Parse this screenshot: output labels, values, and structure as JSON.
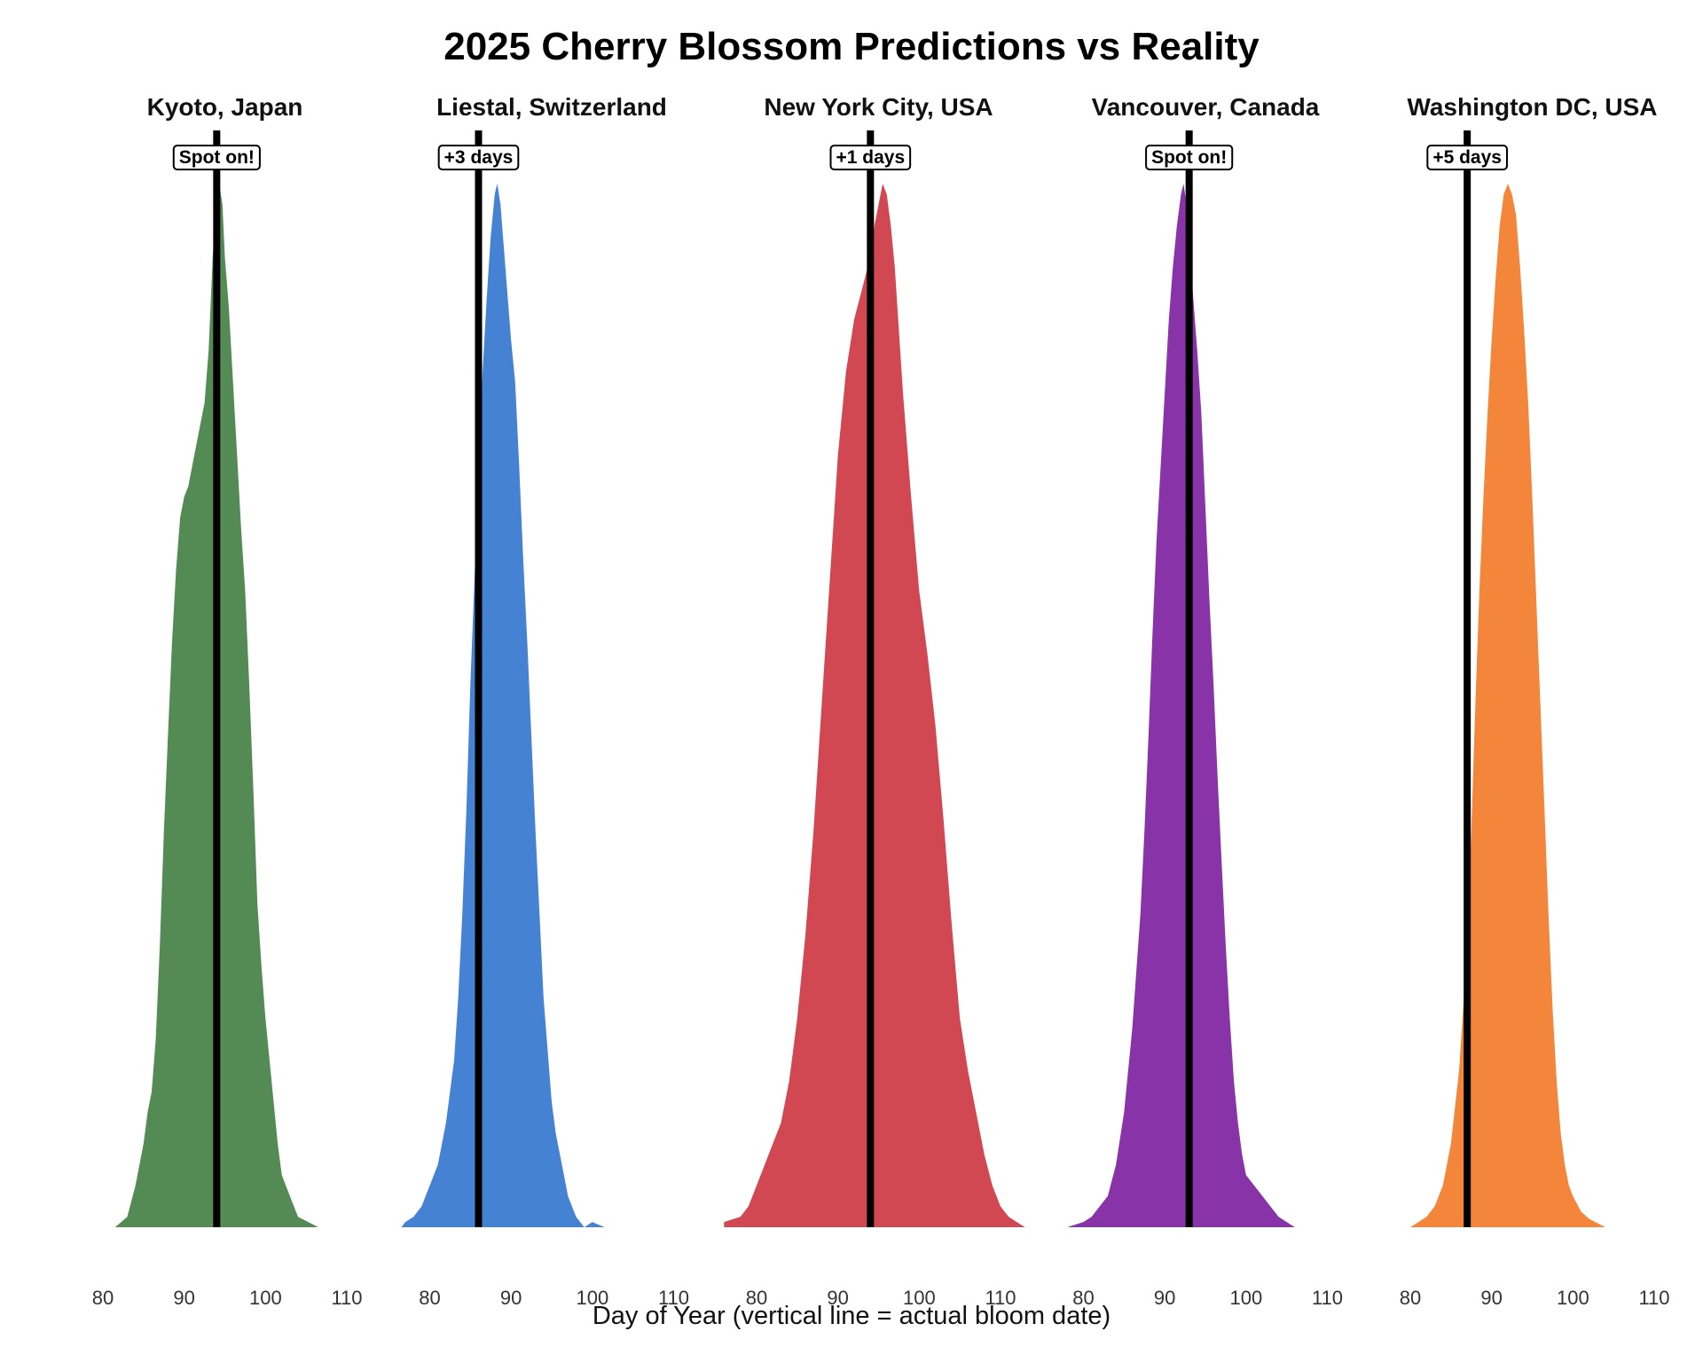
{
  "chart_data": {
    "type": "density",
    "title": "2025 Cherry Blossom Predictions vs Reality",
    "xlabel": "Day of Year (vertical line = actual bloom date)",
    "ylabel": "",
    "xlim": [
      80,
      110
    ],
    "xticks": [
      80,
      90,
      100,
      110
    ],
    "grid": false,
    "legend": "none",
    "panels": [
      {
        "name": "Kyoto, Japan",
        "color": "#548B54",
        "actual_bloom_day": 94,
        "annotation": "Spot on!",
        "density": [
          [
            81.5,
            0.0
          ],
          [
            83,
            0.01
          ],
          [
            84,
            0.04
          ],
          [
            85,
            0.08
          ],
          [
            85.5,
            0.11
          ],
          [
            86,
            0.13
          ],
          [
            86.5,
            0.18
          ],
          [
            87,
            0.27
          ],
          [
            87.5,
            0.38
          ],
          [
            88,
            0.47
          ],
          [
            88.5,
            0.56
          ],
          [
            89,
            0.63
          ],
          [
            89.5,
            0.68
          ],
          [
            90,
            0.7
          ],
          [
            90.5,
            0.71
          ],
          [
            91,
            0.73
          ],
          [
            91.5,
            0.75
          ],
          [
            92,
            0.77
          ],
          [
            92.5,
            0.79
          ],
          [
            93,
            0.84
          ],
          [
            93.5,
            0.93
          ],
          [
            94,
            0.98
          ],
          [
            94.3,
            1.0
          ],
          [
            94.7,
            0.98
          ],
          [
            95,
            0.93
          ],
          [
            95.5,
            0.88
          ],
          [
            96,
            0.81
          ],
          [
            96.5,
            0.74
          ],
          [
            97,
            0.67
          ],
          [
            97.5,
            0.61
          ],
          [
            98,
            0.52
          ],
          [
            98.5,
            0.42
          ],
          [
            99,
            0.31
          ],
          [
            99.5,
            0.25
          ],
          [
            100,
            0.2
          ],
          [
            100.5,
            0.16
          ],
          [
            101,
            0.12
          ],
          [
            101.5,
            0.08
          ],
          [
            102,
            0.05
          ],
          [
            103,
            0.03
          ],
          [
            104,
            0.01
          ],
          [
            106.5,
            0.0
          ]
        ]
      },
      {
        "name": "Liestal, Switzerland",
        "color": "#4682D4",
        "actual_bloom_day": 86,
        "annotation": "+3 days",
        "density": [
          [
            76.5,
            0.0
          ],
          [
            77,
            0.005
          ],
          [
            78,
            0.01
          ],
          [
            79,
            0.02
          ],
          [
            80,
            0.04
          ],
          [
            81,
            0.06
          ],
          [
            82,
            0.1
          ],
          [
            83,
            0.16
          ],
          [
            83.5,
            0.22
          ],
          [
            84,
            0.3
          ],
          [
            84.5,
            0.4
          ],
          [
            85,
            0.52
          ],
          [
            85.5,
            0.62
          ],
          [
            86,
            0.73
          ],
          [
            86.5,
            0.82
          ],
          [
            87,
            0.89
          ],
          [
            87.5,
            0.95
          ],
          [
            88,
            0.99
          ],
          [
            88.3,
            1.0
          ],
          [
            88.7,
            0.98
          ],
          [
            89,
            0.95
          ],
          [
            89.5,
            0.9
          ],
          [
            90,
            0.85
          ],
          [
            90.5,
            0.81
          ],
          [
            91,
            0.73
          ],
          [
            91.5,
            0.64
          ],
          [
            92,
            0.56
          ],
          [
            92.5,
            0.47
          ],
          [
            93,
            0.38
          ],
          [
            93.5,
            0.3
          ],
          [
            94,
            0.22
          ],
          [
            94.5,
            0.17
          ],
          [
            95,
            0.12
          ],
          [
            95.5,
            0.09
          ],
          [
            96,
            0.07
          ],
          [
            96.5,
            0.05
          ],
          [
            97,
            0.03
          ],
          [
            98,
            0.01
          ],
          [
            99,
            0.0
          ],
          [
            100,
            0.005
          ],
          [
            101.5,
            0.0
          ]
        ]
      },
      {
        "name": "New York City, USA",
        "color": "#D24852",
        "actual_bloom_day": 94,
        "annotation": "+1 days",
        "density": [
          [
            76,
            0.005
          ],
          [
            78,
            0.01
          ],
          [
            79,
            0.02
          ],
          [
            80,
            0.04
          ],
          [
            81,
            0.06
          ],
          [
            82,
            0.08
          ],
          [
            83,
            0.1
          ],
          [
            84,
            0.14
          ],
          [
            85,
            0.2
          ],
          [
            86,
            0.28
          ],
          [
            87,
            0.38
          ],
          [
            88,
            0.5
          ],
          [
            89,
            0.62
          ],
          [
            90,
            0.74
          ],
          [
            91,
            0.82
          ],
          [
            92,
            0.87
          ],
          [
            93,
            0.9
          ],
          [
            94,
            0.93
          ],
          [
            94.5,
            0.96
          ],
          [
            95,
            0.98
          ],
          [
            95.5,
            1.0
          ],
          [
            96,
            0.99
          ],
          [
            96.5,
            0.96
          ],
          [
            97,
            0.92
          ],
          [
            97.5,
            0.86
          ],
          [
            98,
            0.8
          ],
          [
            99,
            0.7
          ],
          [
            100,
            0.61
          ],
          [
            101,
            0.55
          ],
          [
            102,
            0.48
          ],
          [
            103,
            0.39
          ],
          [
            104,
            0.29
          ],
          [
            105,
            0.2
          ],
          [
            106,
            0.15
          ],
          [
            107,
            0.11
          ],
          [
            108,
            0.07
          ],
          [
            109,
            0.04
          ],
          [
            110,
            0.02
          ],
          [
            111,
            0.01
          ],
          [
            113,
            0.0
          ]
        ]
      },
      {
        "name": "Vancouver, Canada",
        "color": "#8833A8",
        "actual_bloom_day": 93,
        "annotation": "Spot on!",
        "density": [
          [
            78,
            0.0
          ],
          [
            80,
            0.005
          ],
          [
            81,
            0.01
          ],
          [
            82,
            0.02
          ],
          [
            83,
            0.03
          ],
          [
            84,
            0.06
          ],
          [
            85,
            0.11
          ],
          [
            86,
            0.19
          ],
          [
            87,
            0.3
          ],
          [
            87.5,
            0.38
          ],
          [
            88,
            0.47
          ],
          [
            88.5,
            0.57
          ],
          [
            89,
            0.66
          ],
          [
            89.5,
            0.73
          ],
          [
            90,
            0.8
          ],
          [
            90.5,
            0.87
          ],
          [
            91,
            0.92
          ],
          [
            91.5,
            0.96
          ],
          [
            92,
            0.99
          ],
          [
            92.3,
            1.0
          ],
          [
            92.7,
            0.98
          ],
          [
            93,
            0.94
          ],
          [
            93.5,
            0.89
          ],
          [
            94,
            0.84
          ],
          [
            94.5,
            0.78
          ],
          [
            95,
            0.69
          ],
          [
            95.5,
            0.6
          ],
          [
            96,
            0.52
          ],
          [
            96.5,
            0.43
          ],
          [
            97,
            0.35
          ],
          [
            97.5,
            0.27
          ],
          [
            98,
            0.2
          ],
          [
            98.5,
            0.14
          ],
          [
            99,
            0.1
          ],
          [
            99.5,
            0.07
          ],
          [
            100,
            0.05
          ],
          [
            101,
            0.04
          ],
          [
            102,
            0.03
          ],
          [
            103,
            0.02
          ],
          [
            104,
            0.01
          ],
          [
            106,
            0.0
          ]
        ]
      },
      {
        "name": "Washington DC, USA",
        "color": "#F3863A",
        "actual_bloom_day": 87,
        "annotation": "+5 days",
        "density": [
          [
            80,
            0.0
          ],
          [
            81,
            0.005
          ],
          [
            82,
            0.01
          ],
          [
            83,
            0.02
          ],
          [
            84,
            0.04
          ],
          [
            85,
            0.08
          ],
          [
            86,
            0.15
          ],
          [
            86.5,
            0.21
          ],
          [
            87,
            0.28
          ],
          [
            87.5,
            0.38
          ],
          [
            88,
            0.5
          ],
          [
            88.5,
            0.61
          ],
          [
            89,
            0.7
          ],
          [
            89.5,
            0.78
          ],
          [
            90,
            0.85
          ],
          [
            90.5,
            0.91
          ],
          [
            91,
            0.96
          ],
          [
            91.5,
            0.99
          ],
          [
            92,
            1.0
          ],
          [
            92.5,
            0.99
          ],
          [
            93,
            0.97
          ],
          [
            93.5,
            0.92
          ],
          [
            94,
            0.86
          ],
          [
            94.5,
            0.79
          ],
          [
            95,
            0.7
          ],
          [
            95.5,
            0.6
          ],
          [
            96,
            0.5
          ],
          [
            96.5,
            0.4
          ],
          [
            97,
            0.3
          ],
          [
            97.5,
            0.21
          ],
          [
            98,
            0.14
          ],
          [
            98.5,
            0.09
          ],
          [
            99,
            0.06
          ],
          [
            99.5,
            0.04
          ],
          [
            100,
            0.03
          ],
          [
            101,
            0.015
          ],
          [
            102,
            0.008
          ],
          [
            104,
            0.0
          ]
        ]
      }
    ]
  }
}
